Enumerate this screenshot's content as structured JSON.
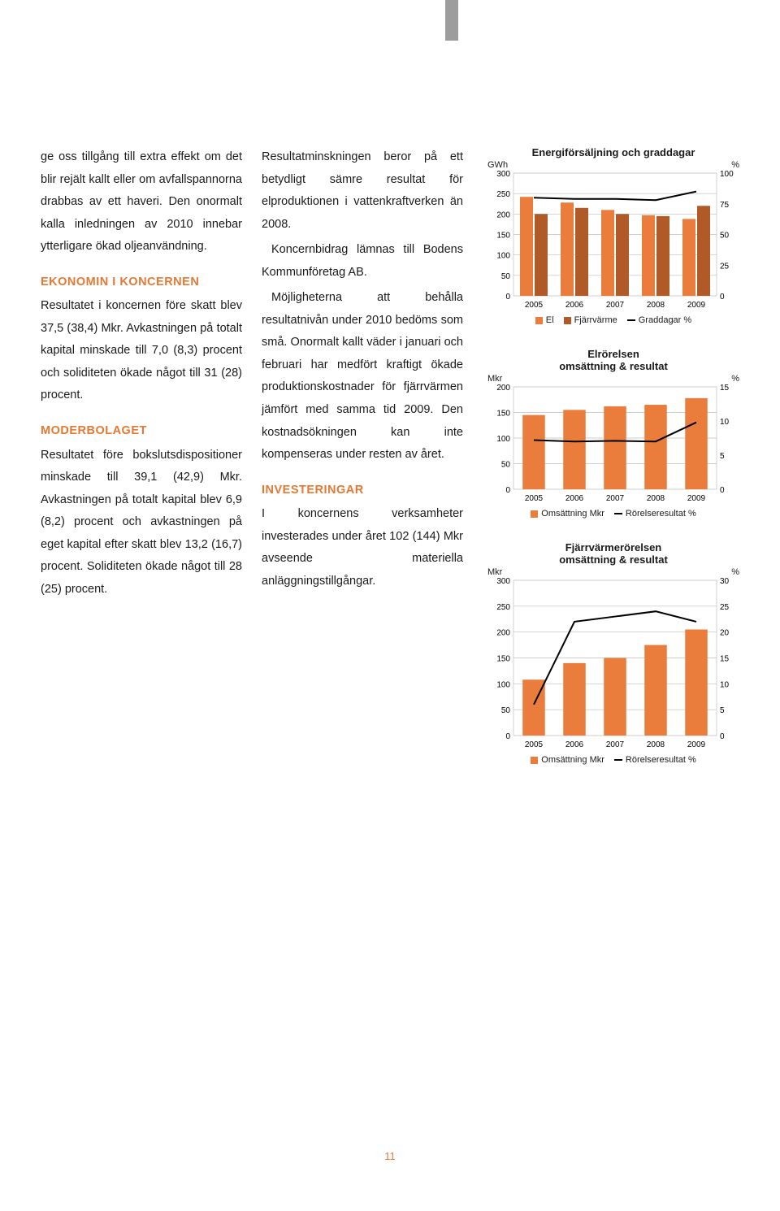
{
  "col1": {
    "p1": "ge oss tillgång till extra effekt om det blir rejält kallt eller om avfallspannorna drabbas av ett haveri. Den onormalt kalla inledningen av 2010 innebar ytterligare ökad oljeanvändning.",
    "h1": "EKONOMIN I KONCERNEN",
    "p2": "Resultatet i koncernen före skatt blev 37,5 (38,4) Mkr. Avkastningen på totalt kapital minskade till 7,0 (8,3) procent och soliditeten ökade något till 31 (28) procent.",
    "h2": "MODERBOLAGET",
    "p3": "Resultatet före bokslutsdispositioner minskade till 39,1 (42,9) Mkr. Avkastningen på totalt kapital blev 6,9 (8,2) procent och avkastningen på eget kapital efter skatt blev 13,2 (16,7) procent. Soliditeten ökade något till 28 (25) procent."
  },
  "col2": {
    "p1": "Resultatminskningen beror på ett betydligt sämre resultat för elproduktionen i vattenkraftverken än 2008.",
    "p2": "Koncernbidrag lämnas till Bodens Kommunföretag AB.",
    "p3": "Möjligheterna att behålla resultatnivån under 2010 bedöms som små. Onormalt kallt väder i januari och februari har medfört kraftigt ökade produktionskostnader för fjärrvärmen jämfört med samma tid 2009. Den kostnadsökningen kan inte kompenseras under resten av året.",
    "h1": "INVESTERINGAR",
    "p4": "I koncernens verksamheter investerades under året 102 (144) Mkr avseende materiella anläggningstillgångar."
  },
  "chart1": {
    "type": "grouped-bar-line",
    "title": "Energiförsäljning och graddagar",
    "unit_left": "GWh",
    "unit_right": "%",
    "categories": [
      "2005",
      "2006",
      "2007",
      "2008",
      "2009"
    ],
    "left_ticks": [
      0,
      50,
      100,
      150,
      200,
      250,
      300
    ],
    "right_ticks": [
      0,
      25,
      50,
      75,
      100
    ],
    "series": {
      "El": {
        "color": "#eb7d3c",
        "values": [
          242,
          228,
          210,
          197,
          188
        ]
      },
      "Fjarrvarme": {
        "color": "#b05a28",
        "values": [
          200,
          215,
          200,
          195,
          220
        ]
      },
      "Graddagar": {
        "color": "#000000",
        "values": [
          80,
          79,
          79,
          78,
          85
        ]
      }
    },
    "legend": [
      "El",
      "Fjärrvärme",
      "Graddagar %"
    ],
    "bg": "#ffffff",
    "grid": "#bdbdbd"
  },
  "chart2": {
    "type": "bar-line",
    "title": "Elrörelsen omsättning & resultat",
    "unit_left": "Mkr",
    "unit_right": "%",
    "categories": [
      "2005",
      "2006",
      "2007",
      "2008",
      "2009"
    ],
    "left_ticks": [
      0,
      50,
      100,
      150,
      200
    ],
    "right_ticks": [
      0,
      5,
      10,
      15
    ],
    "bars": {
      "color": "#eb7d3c",
      "values": [
        145,
        155,
        162,
        165,
        178
      ]
    },
    "line": {
      "color": "#000000",
      "values": [
        7.2,
        7.0,
        7.1,
        7.0,
        9.8
      ]
    },
    "legend": [
      "Omsättning Mkr",
      "Rörelseresultat %"
    ],
    "bg": "#ffffff",
    "grid": "#bdbdbd"
  },
  "chart3": {
    "type": "bar-line",
    "title": "Fjärrvärmerörelsen omsättning & resultat",
    "unit_left": "Mkr",
    "unit_right": "%",
    "categories": [
      "2005",
      "2006",
      "2007",
      "2008",
      "2009"
    ],
    "left_ticks": [
      0,
      50,
      100,
      150,
      200,
      250,
      300
    ],
    "right_ticks": [
      0,
      5,
      10,
      15,
      20,
      25,
      30
    ],
    "bars": {
      "color": "#eb7d3c",
      "values": [
        108,
        140,
        150,
        175,
        205
      ]
    },
    "line": {
      "color": "#000000",
      "values": [
        6,
        22,
        23,
        24,
        22
      ]
    },
    "legend": [
      "Omsättning Mkr",
      "Rörelseresultat %"
    ],
    "bg": "#ffffff",
    "grid": "#bdbdbd"
  },
  "colors": {
    "accent": "#e37933",
    "bar1": "#eb7d3c",
    "bar2": "#b05a28",
    "line": "#000000"
  },
  "page_number": "11"
}
